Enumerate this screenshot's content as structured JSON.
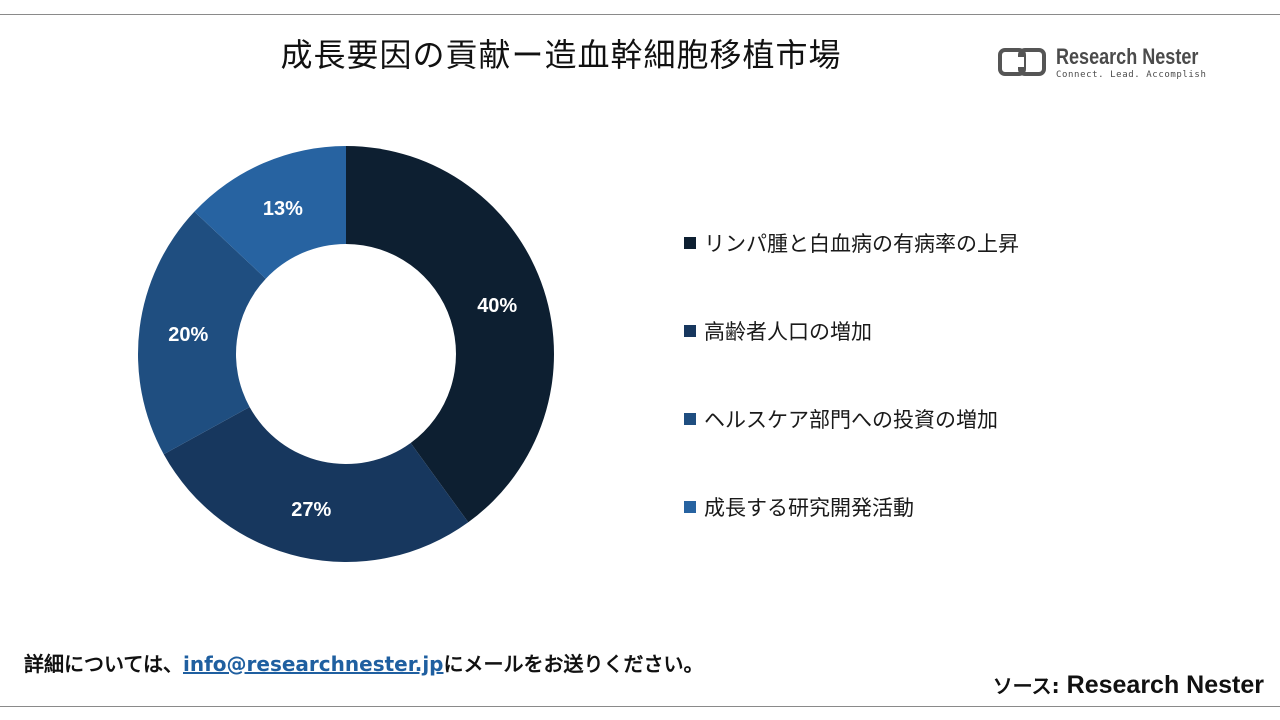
{
  "title": "成長要因の貢献ー造血幹細胞移植市場",
  "logo": {
    "name": "Research Nester",
    "tagline": "Connect. Lead. Accomplish",
    "icon": "research-nester-logo-icon"
  },
  "chart_data": {
    "type": "pie",
    "donut": true,
    "title": "成長要因の貢献ー造血幹細胞移植市場",
    "categories": [
      "リンパ腫と白血病の有病率の上昇",
      "高齢者人口の増加",
      "ヘルスケア部門への投資の増加",
      "成長する研究開発活動"
    ],
    "values": [
      40,
      27,
      20,
      13
    ],
    "labels": [
      "40%",
      "27%",
      "20%",
      "13%"
    ],
    "colors": [
      "#0d1f31",
      "#17375e",
      "#1f4e80",
      "#2763a1"
    ],
    "legend_position": "right"
  },
  "footer": {
    "prefix": "詳細については、",
    "email": "info@researchnester.jp",
    "suffix": "にメールをお送りください。"
  },
  "source": {
    "prefix": "ソース: ",
    "name": "Research Nester"
  }
}
